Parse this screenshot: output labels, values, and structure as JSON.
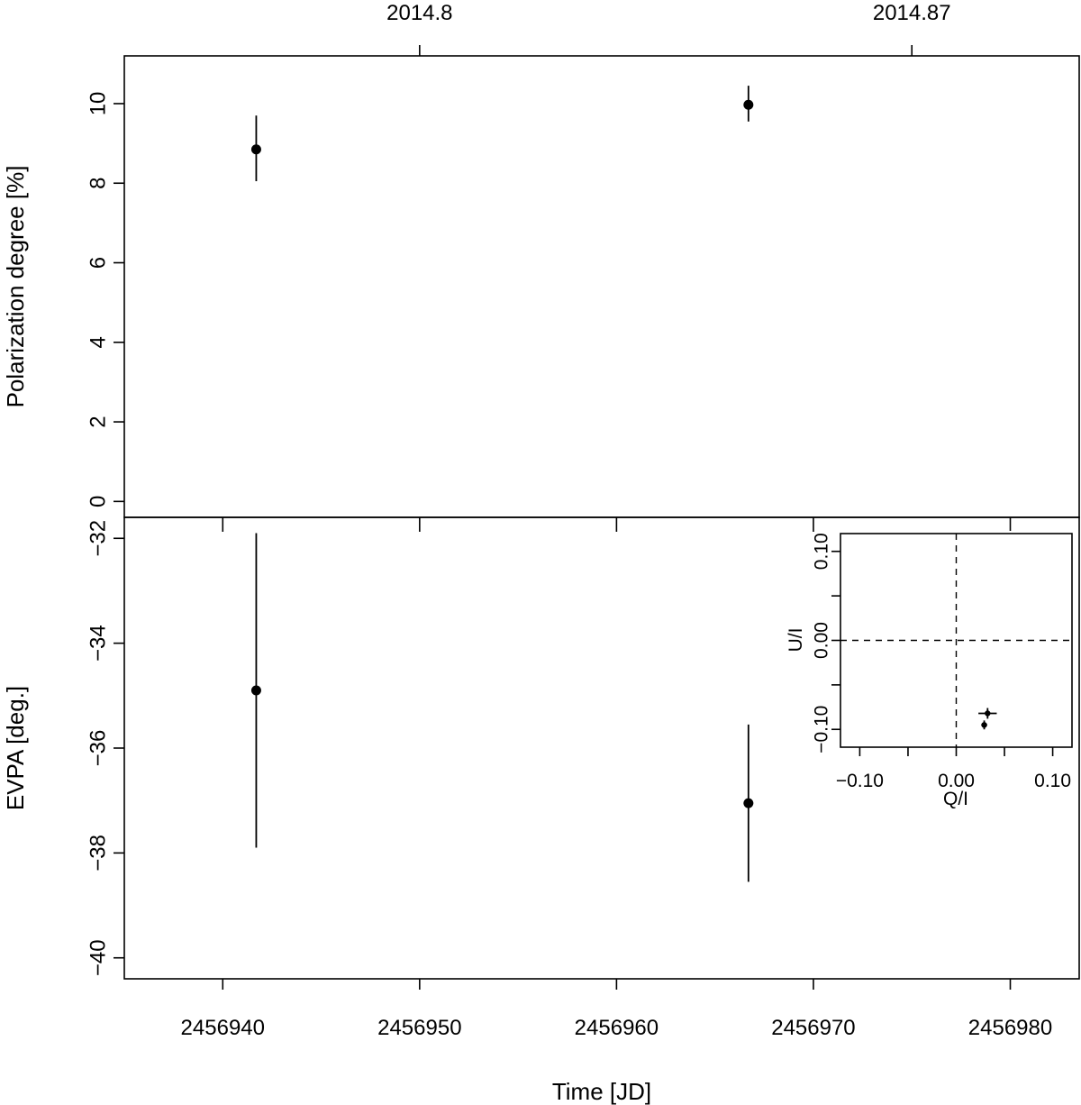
{
  "chart_data": [
    {
      "type": "scatter",
      "panel": "top",
      "xlabel": "",
      "ylabel": "Polarization degree [%]",
      "xlim": [
        2456935,
        2456983.5
      ],
      "ylim": [
        -0.4,
        11.2
      ],
      "yticks": [
        0,
        2,
        4,
        6,
        8,
        10
      ],
      "top_axis": {
        "ticks": [
          {
            "x": 2456950,
            "label": "2014.8"
          },
          {
            "x": 2456975,
            "label": "2014.87"
          }
        ]
      },
      "points": [
        {
          "x": 2456941.7,
          "y": 8.85,
          "ylo": 8.05,
          "yhi": 9.7
        },
        {
          "x": 2456966.7,
          "y": 9.97,
          "ylo": 9.55,
          "yhi": 10.45
        }
      ],
      "grid": false
    },
    {
      "type": "scatter",
      "panel": "bottom",
      "xlabel": "Time [JD]",
      "ylabel": "EVPA [deg.]",
      "xlim": [
        2456935,
        2456983.5
      ],
      "ylim": [
        -40.4,
        -31.6
      ],
      "xticks": [
        2456940,
        2456950,
        2456960,
        2456970,
        2456980
      ],
      "yticks": [
        -32,
        -34,
        -36,
        -38,
        -40
      ],
      "points": [
        {
          "x": 2456941.7,
          "y": -34.9,
          "ylo": -37.9,
          "yhi": -31.9
        },
        {
          "x": 2456966.7,
          "y": -37.05,
          "ylo": -38.55,
          "yhi": -35.55
        }
      ],
      "grid": false
    },
    {
      "type": "scatter",
      "panel": "inset",
      "xlabel": "Q/I",
      "ylabel": "U/I",
      "xlim": [
        -0.12,
        0.12
      ],
      "ylim": [
        -0.12,
        0.12
      ],
      "xticks": [
        -0.1,
        0.0,
        0.1
      ],
      "yticks": [
        -0.1,
        0.0,
        0.1
      ],
      "xtick_labels": [
        "−0.10",
        "0.00",
        "0.10"
      ],
      "ytick_labels": [
        "−0.10",
        "0.00",
        "0.10"
      ],
      "reference_lines": {
        "x": 0,
        "y": 0,
        "style": "dashed"
      },
      "points": [
        {
          "x": 0.0325,
          "y": -0.082,
          "xlo": 0.023,
          "xhi": 0.042,
          "ylo": -0.088,
          "yhi": -0.076
        },
        {
          "x": 0.029,
          "y": -0.095,
          "xlo": 0.026,
          "xhi": 0.032,
          "ylo": -0.1,
          "yhi": -0.09
        }
      ],
      "grid": false
    }
  ]
}
